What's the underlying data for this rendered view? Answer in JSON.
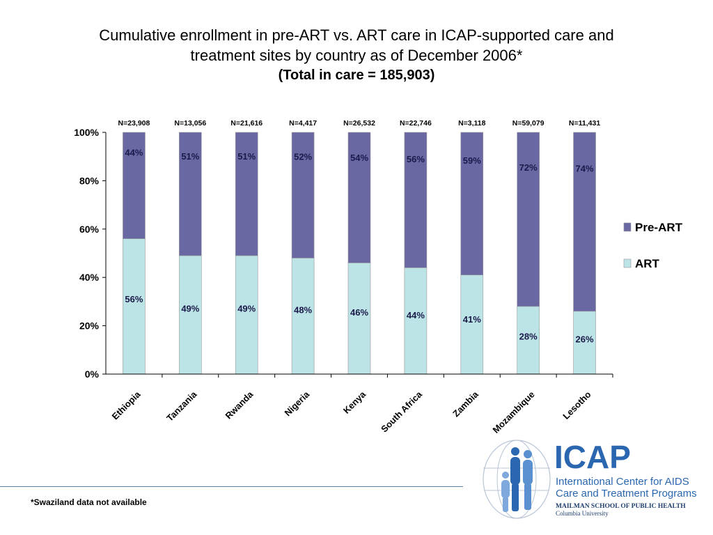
{
  "title": {
    "line1": "Cumulative enrollment in pre-ART vs. ART care in ICAP-supported care and",
    "line2": "treatment sites by country as of December 2006*",
    "subtitle": "(Total in care = 185,903)"
  },
  "footnote": "*Swaziland data not available",
  "logo": {
    "acronym": "ICAP",
    "line1": "International Center for AIDS",
    "line2": "Care and Treatment Programs",
    "line3": "MAILMAN SCHOOL OF PUBLIC HEALTH",
    "line4": "Columbia University",
    "icon": "family-globe-icon"
  },
  "colors": {
    "pre_art": "#6a68a3",
    "art": "#bce3e6",
    "logo_blue": "#2b67b0"
  },
  "chart_data": {
    "type": "bar",
    "stacked": true,
    "categories": [
      "Ethiopia",
      "Tanzania",
      "Rwanda",
      "Nigeria",
      "Kenya",
      "South Africa",
      "Zambia",
      "Mozambique",
      "Lesotho"
    ],
    "n_labels": [
      "N=23,908",
      "N=13,056",
      "N=21,616",
      "N=4,417",
      "N=26,532",
      "N=22,746",
      "N=3,118",
      "N=59,079",
      "N=11,431"
    ],
    "series": [
      {
        "name": "ART",
        "values": [
          56,
          49,
          49,
          48,
          46,
          44,
          41,
          28,
          26
        ],
        "color": "#bce3e6"
      },
      {
        "name": "Pre-ART",
        "values": [
          44,
          51,
          51,
          52,
          54,
          56,
          59,
          72,
          74
        ],
        "color": "#6a68a3"
      }
    ],
    "ylim": [
      0,
      100
    ],
    "yticks": [
      "0%",
      "20%",
      "40%",
      "60%",
      "80%",
      "100%"
    ],
    "legend_position": "right",
    "grid": false
  }
}
